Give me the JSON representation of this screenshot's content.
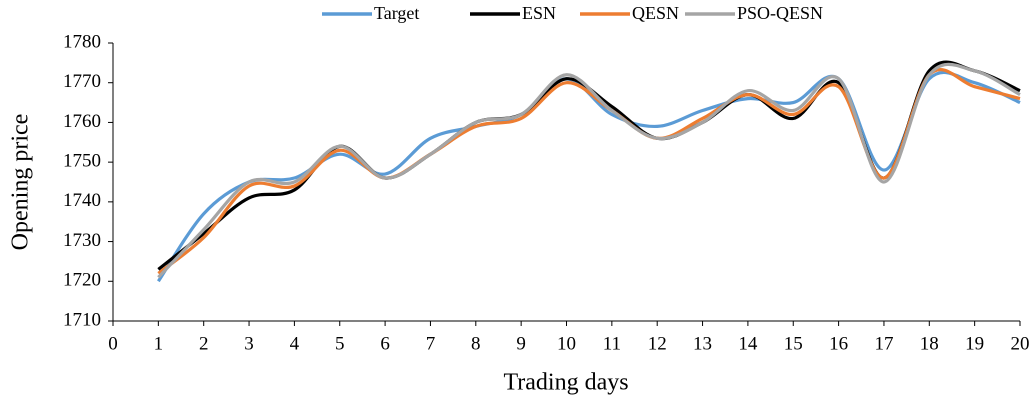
{
  "chart_data": {
    "type": "line",
    "x_label": "Trading days",
    "y_label": "Opening price",
    "x": [
      1,
      2,
      3,
      4,
      5,
      6,
      7,
      8,
      9,
      10,
      11,
      12,
      13,
      14,
      15,
      16,
      17,
      18,
      19,
      20
    ],
    "series": [
      {
        "name": "Target",
        "color": "#5b9bd5",
        "values": [
          1720,
          1737,
          1745,
          1746,
          1752,
          1747,
          1756,
          1759,
          1762,
          1771,
          1762,
          1759,
          1763,
          1766,
          1765,
          1771,
          1748,
          1771,
          1770,
          1765
        ]
      },
      {
        "name": "ESN",
        "color": "#000000",
        "values": [
          1723,
          1732,
          1741,
          1743,
          1754,
          1746,
          1752,
          1760,
          1762,
          1771,
          1764,
          1756,
          1760,
          1767,
          1761,
          1770,
          1746,
          1773,
          1773,
          1768
        ]
      },
      {
        "name": "QESN",
        "color": "#ed7d31",
        "values": [
          1722,
          1731,
          1744,
          1744,
          1753,
          1746,
          1752,
          1759,
          1761,
          1770,
          1763,
          1756,
          1761,
          1767,
          1762,
          1769,
          1746,
          1772,
          1769,
          1766
        ]
      },
      {
        "name": "PSO-QESN",
        "color": "#a5a5a5",
        "values": [
          1721,
          1733,
          1745,
          1745,
          1754,
          1746,
          1752,
          1760,
          1762,
          1772,
          1763,
          1756,
          1760,
          1768,
          1763,
          1771,
          1745,
          1772,
          1773,
          1767
        ]
      }
    ],
    "xlim": [
      0,
      20
    ],
    "xticks": [
      0,
      1,
      2,
      3,
      4,
      5,
      6,
      7,
      8,
      9,
      10,
      11,
      12,
      13,
      14,
      15,
      16,
      17,
      18,
      19,
      20
    ],
    "ylim": [
      1710,
      1780
    ],
    "yticks": [
      1710,
      1720,
      1730,
      1740,
      1750,
      1760,
      1770,
      1780
    ],
    "grid": false,
    "legend": "top",
    "smooth": true
  }
}
